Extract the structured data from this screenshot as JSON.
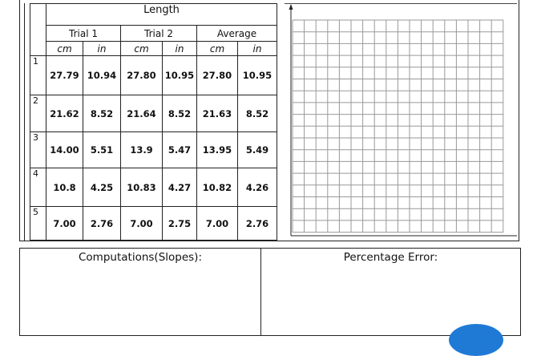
{
  "table": {
    "header": "Length",
    "trials": [
      "Trial 1",
      "Trial 2",
      "Average"
    ],
    "units": [
      "cm",
      "in",
      "cm",
      "in",
      "cm",
      "in"
    ],
    "rows": [
      [
        "1",
        "27.79",
        "10.94",
        "27.80",
        "10.95",
        "27.80",
        "10.95"
      ],
      [
        "2",
        "21.62",
        "8.52",
        "21.64",
        "8.52",
        "21.63",
        "8.52"
      ],
      [
        "3",
        "14.00",
        "5.51",
        "13.9",
        "5.47",
        "13.95",
        "5.49"
      ],
      [
        "4",
        "10.8",
        "4.25",
        "10.83",
        "4.27",
        "10.82",
        "4.26"
      ],
      [
        "5",
        "7.00",
        "2.76",
        "7.00",
        "2.75",
        "7.00",
        "2.76"
      ]
    ]
  },
  "computations": {
    "label": "Computations(Slopes):"
  },
  "percentage_error": {
    "label": "Percentage Error:"
  }
}
